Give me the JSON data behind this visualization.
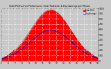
{
  "title": "Solar PV/Inverter Performance Solar Radiation & Day Average per Minute",
  "bg_color": "#c8c8c8",
  "plot_bg_color": "#c8c8c8",
  "fill_color": "#ff0000",
  "line_color": "#cc0000",
  "avg_line_color": "#0000cc",
  "x_start": 5.0,
  "x_end": 19.0,
  "y_min": 0,
  "y_max": 1000,
  "peak_x": 12.2,
  "peak_y": 970,
  "sigma": 2.9,
  "x_ticks": [
    5,
    6,
    7,
    8,
    9,
    10,
    11,
    12,
    13,
    14,
    15,
    16,
    17,
    18,
    19
  ],
  "y_ticks": [
    0,
    100,
    200,
    300,
    400,
    500,
    600,
    700,
    800,
    900,
    1000
  ],
  "grid_color": "#ffffff",
  "title_color": "#000000",
  "legend_solar_color": "#ff0000",
  "legend_avg_color": "#0000ff",
  "legend_solar": "Solar W/m²",
  "legend_avg": "Day Average"
}
